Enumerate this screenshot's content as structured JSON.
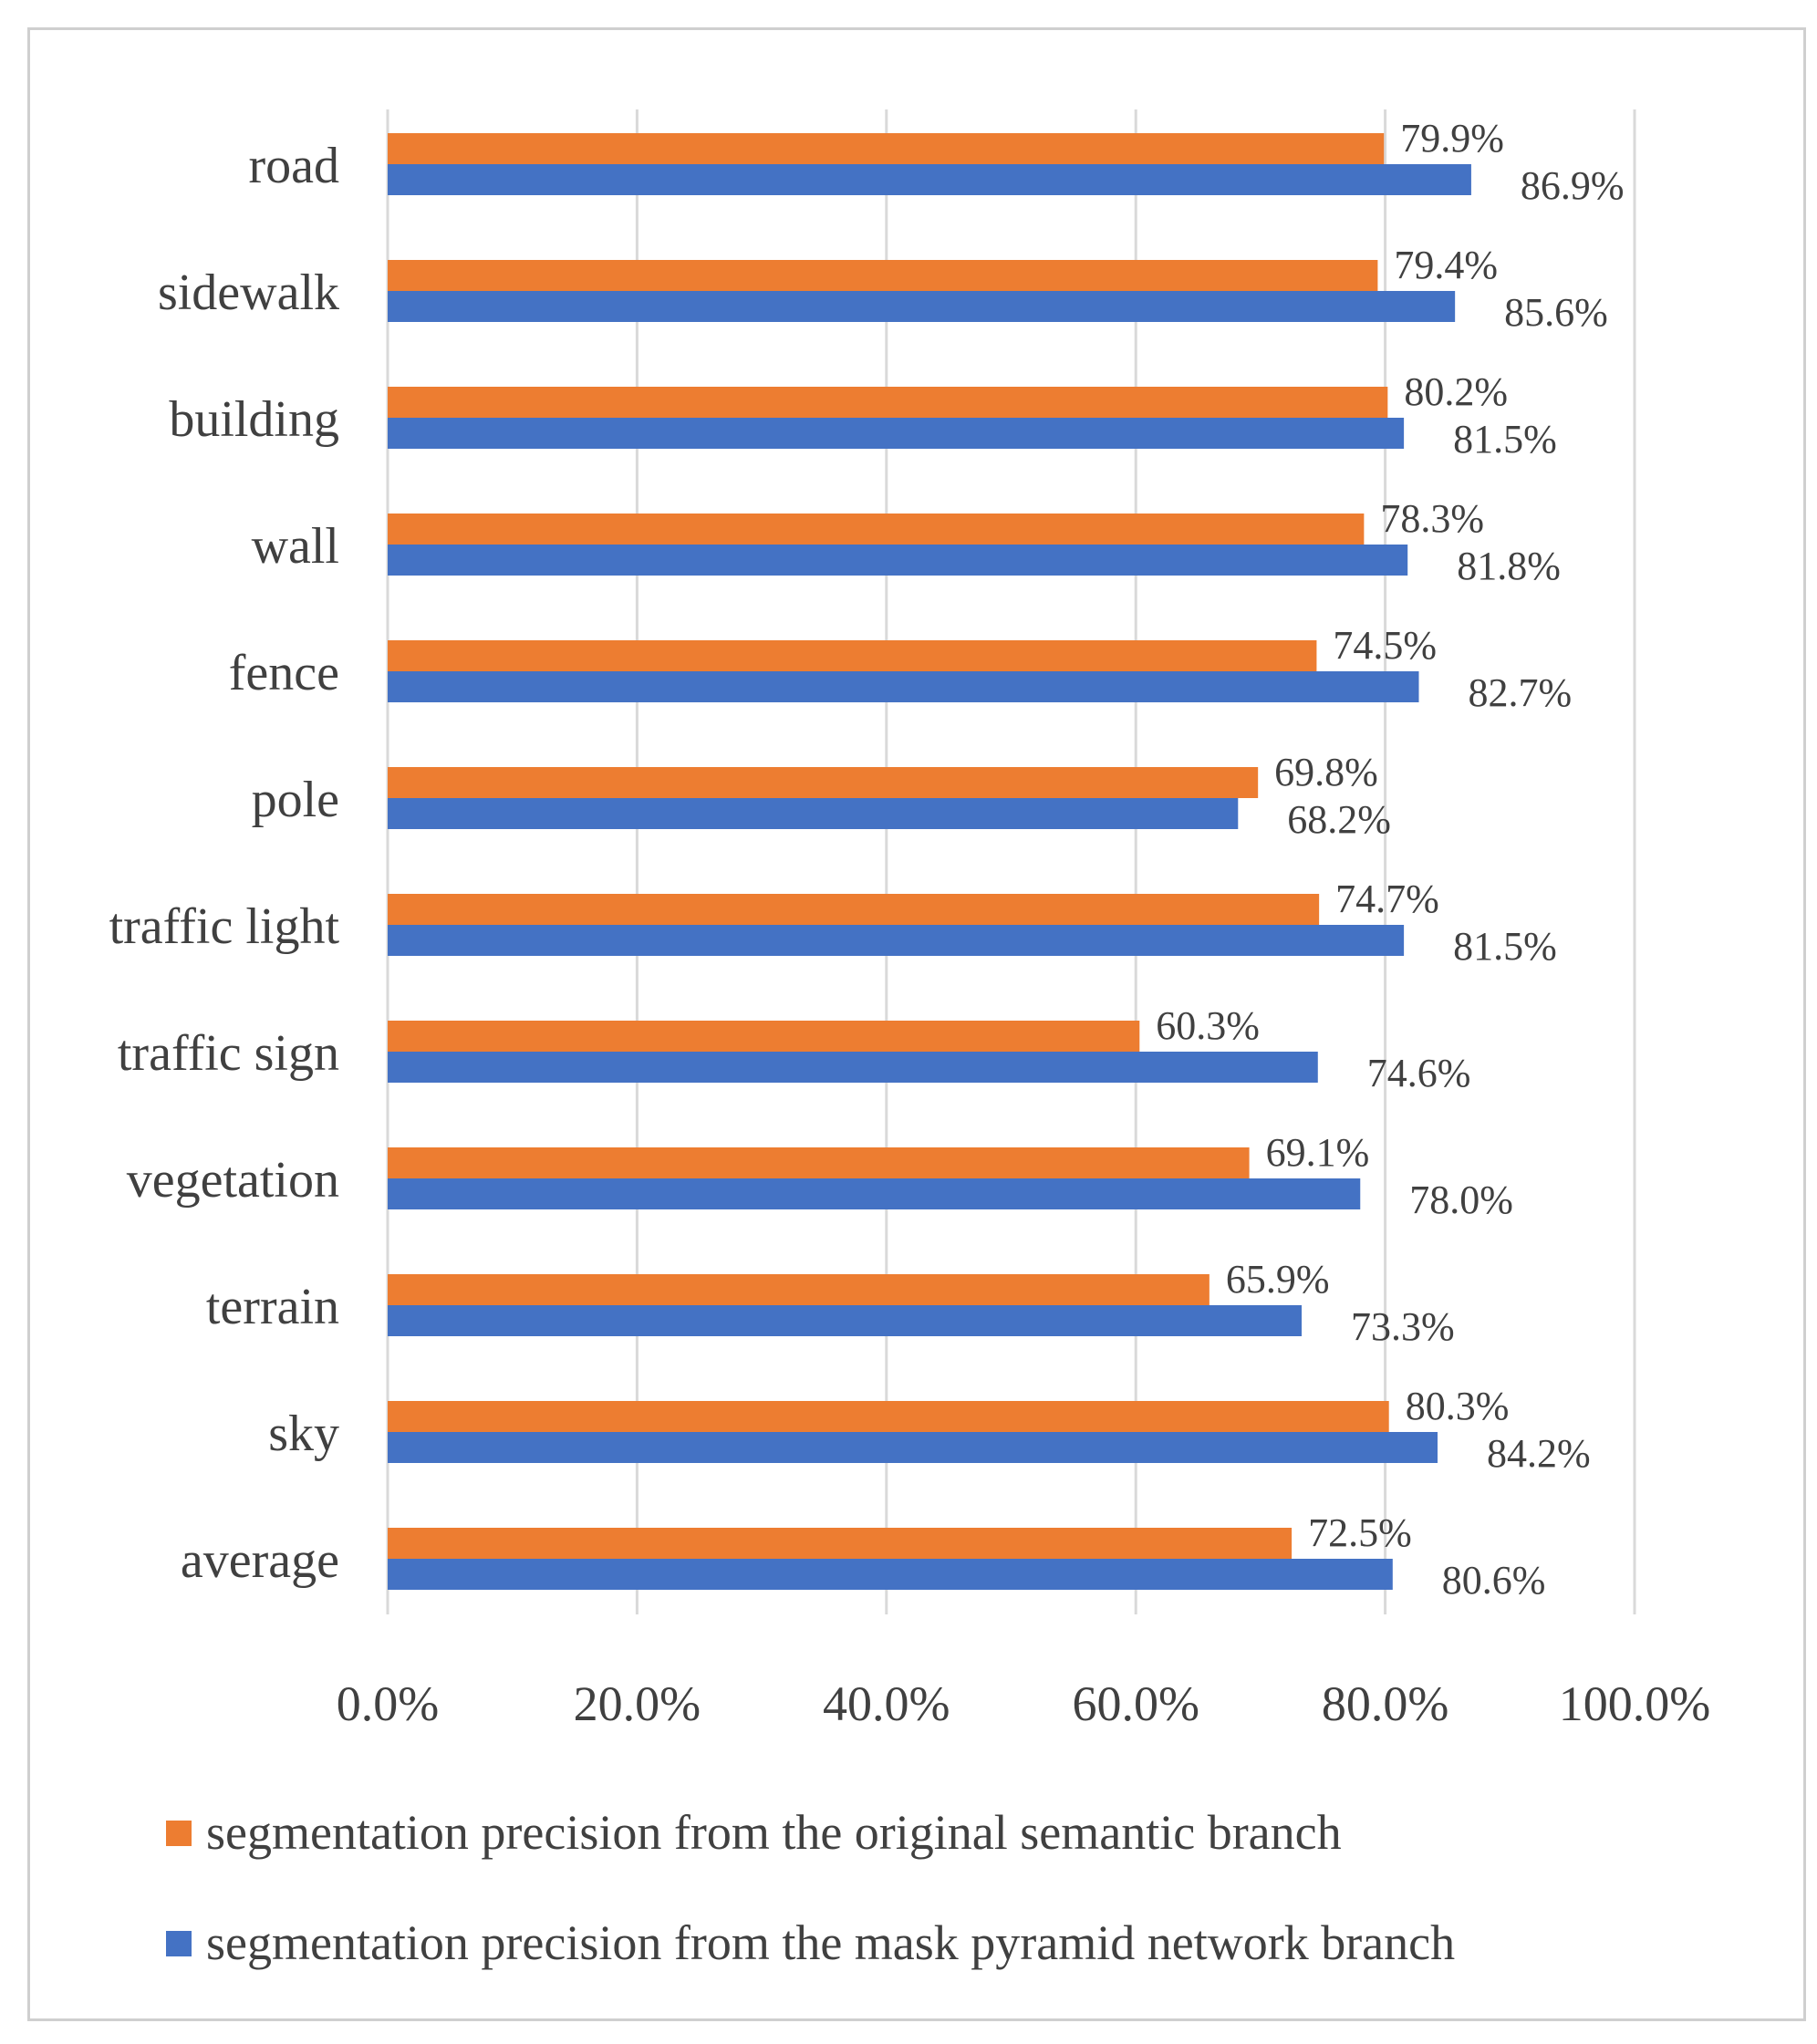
{
  "chart_data": {
    "type": "bar",
    "orientation": "horizontal",
    "categories": [
      "road",
      "sidewalk",
      "building",
      "wall",
      "fence",
      "pole",
      "traffic light",
      "traffic sign",
      "vegetation",
      "terrain",
      "sky",
      "average"
    ],
    "series": [
      {
        "name": "segmentation precision from the original semantic branch",
        "color": "#ED7D31",
        "values": [
          79.9,
          79.4,
          80.2,
          78.3,
          74.5,
          69.8,
          74.7,
          60.3,
          69.1,
          65.9,
          80.3,
          72.5
        ],
        "labels": [
          "79.9%",
          "79.4%",
          "80.2%",
          "78.3%",
          "74.5%",
          "69.8%",
          "74.7%",
          "60.3%",
          "69.1%",
          "65.9%",
          "80.3%",
          "72.5%"
        ]
      },
      {
        "name": "segmentation precision from the mask pyramid network branch",
        "color": "#4472C4",
        "values": [
          86.9,
          85.6,
          81.5,
          81.8,
          82.7,
          68.2,
          81.5,
          74.6,
          78.0,
          73.3,
          84.2,
          80.6
        ],
        "labels": [
          "86.9%",
          "85.6%",
          "81.5%",
          "81.8%",
          "82.7%",
          "68.2%",
          "81.5%",
          "74.6%",
          "78.0%",
          "73.3%",
          "84.2%",
          "80.6%"
        ]
      }
    ],
    "xlim": [
      0,
      100
    ],
    "xticks": [
      0,
      20,
      40,
      60,
      80,
      100
    ],
    "xtick_labels": [
      "0.0%",
      "20.0%",
      "40.0%",
      "60.0%",
      "80.0%",
      "100.0%"
    ],
    "grid": "vertical",
    "legend_position": "bottom",
    "title": "",
    "xlabel": "",
    "ylabel": ""
  }
}
